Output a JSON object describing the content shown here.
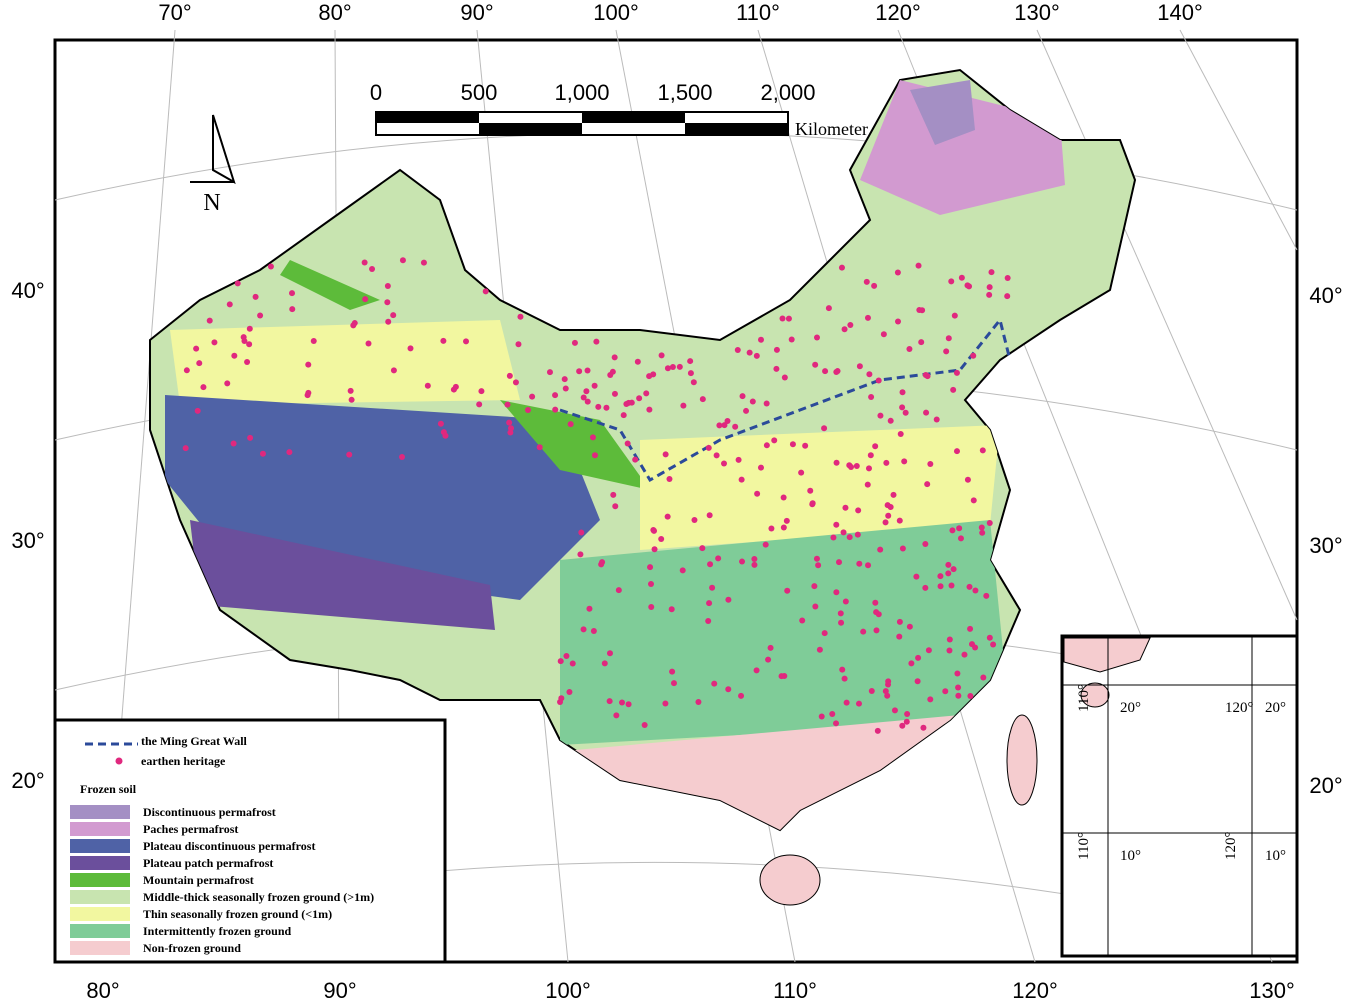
{
  "map": {
    "top_longitude_labels": [
      "70°",
      "80°",
      "90°",
      "100°",
      "110°",
      "120°",
      "130°",
      "140°"
    ],
    "bottom_longitude_labels": [
      "80°",
      "90°",
      "100°",
      "110°",
      "120°",
      "130°"
    ],
    "left_latitude_labels": [
      "40°",
      "30°",
      "20°"
    ],
    "right_latitude_labels": [
      "40°",
      "30°",
      "20°"
    ],
    "scale_bar": {
      "labels": [
        "0",
        "500",
        "1,000",
        "1,500",
        "2,000"
      ],
      "unit": "Kilometer"
    },
    "north_arrow": "N"
  },
  "legend": {
    "great_wall": {
      "label": "the Ming Great Wall",
      "color": "#2b4a9a"
    },
    "heritage": {
      "label": "earthen heritage",
      "color": "#e0287e"
    },
    "section_title": "Frozen soil",
    "classes": [
      {
        "label": "Discontinuous permafrost",
        "color": "#a48fc4"
      },
      {
        "label": "Paches permafrost",
        "color": "#d29ad0"
      },
      {
        "label": "Plateau discontinuous permafrost",
        "color": "#4f62a6"
      },
      {
        "label": "Plateau patch permafrost",
        "color": "#6b4f9c"
      },
      {
        "label": "Mountain permafrost",
        "color": "#5dbb3a"
      },
      {
        "label": "Middle-thick seasonally frozen ground (>1m)",
        "color": "#c8e4b0"
      },
      {
        "label": "Thin seasonally frozen ground (<1m)",
        "color": "#f2f7a0"
      },
      {
        "label": "Intermittently frozen ground",
        "color": "#7fcc98"
      },
      {
        "label": "Non-frozen ground",
        "color": "#f5cccf"
      }
    ]
  },
  "inset": {
    "labels": [
      "110°",
      "20°",
      "120°",
      "20°",
      "110°",
      "10°",
      "120°",
      "10°"
    ]
  }
}
